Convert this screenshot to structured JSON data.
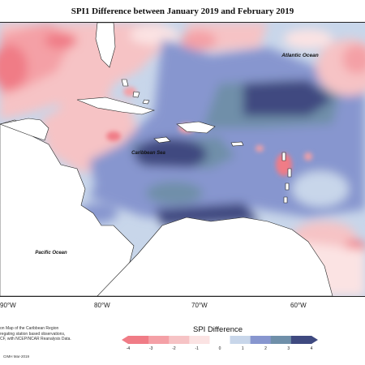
{
  "title": "SPI1 Difference between January 2019 and February 2019",
  "map": {
    "labels": {
      "atlantic": "Atlantic Ocean",
      "caribbean": "Caribbean Sea",
      "pacific": "Pacific Ocean"
    },
    "longitude_ticks": [
      "90°W",
      "80°W",
      "70°W",
      "60°W"
    ]
  },
  "legend": {
    "title": "SPI Difference",
    "ticks": [
      "-4",
      "-3",
      "-2",
      "-1",
      "0",
      "1",
      "2",
      "3",
      "4"
    ],
    "colors": [
      "#f07c86",
      "#f4a0a6",
      "#f6c3c5",
      "#fbe3e3",
      "#ffffff",
      "#c8d6ea",
      "#8796cf",
      "#6f8fa9",
      "#3f4a80"
    ]
  },
  "credits": {
    "lines": [
      "on Map of the Caribbean Region",
      "regating station based observations,",
      "CF, with NCEP/NCAR Reanalysis Data."
    ],
    "date": "CIMH Mar-2019"
  },
  "colors": {
    "neg_strong": "#f07c86",
    "neg_mid": "#f4a0a6",
    "neg_light": "#f6c3c5",
    "neutral": "#fbe3e3",
    "pos_light": "#c8d6ea",
    "pos_mid": "#8796cf",
    "pos_teal": "#6f8fa9",
    "pos_dark": "#3f4a80",
    "land": "#ffffff",
    "coast": "#222222"
  }
}
